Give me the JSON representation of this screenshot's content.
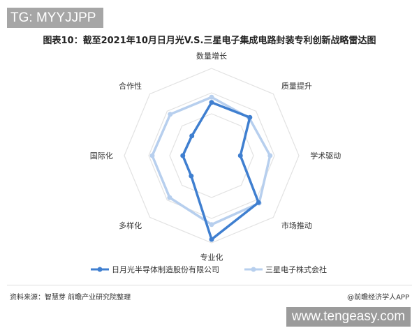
{
  "watermark_tag": "TG: MYYJJPP",
  "watermark_url": "www.tengeasy.com",
  "footer": {
    "source": "资料来源：智慧芽 前瞻产业研究院整理",
    "brand": "@前瞻经济学人APP"
  },
  "chart_data": {
    "type": "radar",
    "title": "图表10：截至2021年10月日月光V.S.三星电子集成电路封装专利创新战略雷达图",
    "categories": [
      "数量增长",
      "质量提升",
      "学术驱动",
      "市场推动",
      "专业化",
      "多样化",
      "国际化",
      "合作性"
    ],
    "range": [
      0,
      100
    ],
    "grid": true,
    "legend_position": "bottom",
    "series": [
      {
        "name": "日月光半导体制造股份有限公司",
        "color": "#3f7fd0",
        "values": [
          61,
          62,
          33,
          76,
          96,
          33,
          33,
          32
        ]
      },
      {
        "name": "三星电子株式会社",
        "color": "#b7cfee",
        "values": [
          67,
          61,
          67,
          77,
          79,
          68,
          68,
          67
        ]
      }
    ]
  }
}
